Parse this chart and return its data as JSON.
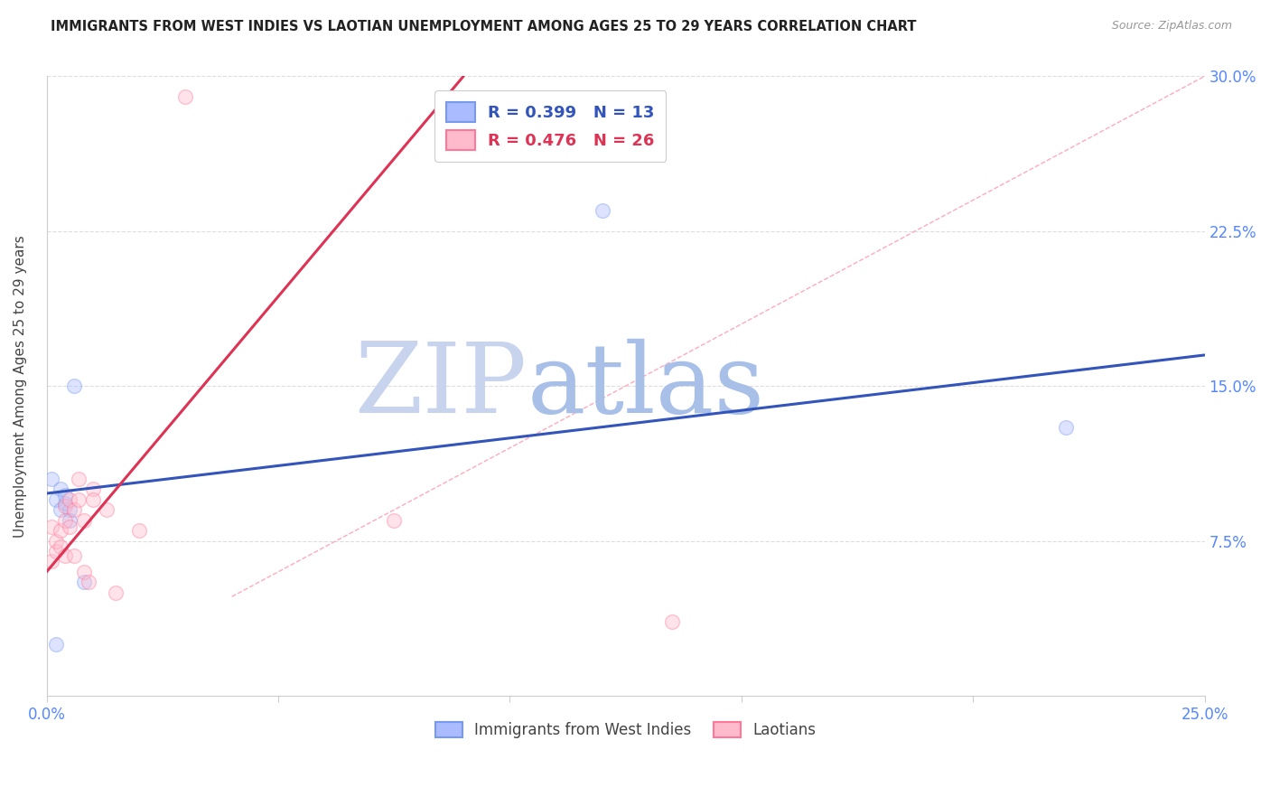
{
  "title": "IMMIGRANTS FROM WEST INDIES VS LAOTIAN UNEMPLOYMENT AMONG AGES 25 TO 29 YEARS CORRELATION CHART",
  "source": "Source: ZipAtlas.com",
  "ylabel": "Unemployment Among Ages 25 to 29 years",
  "xlim": [
    0,
    0.25
  ],
  "ylim": [
    0,
    0.3
  ],
  "xticks": [
    0.0,
    0.05,
    0.1,
    0.15,
    0.2,
    0.25
  ],
  "yticks": [
    0.0,
    0.075,
    0.15,
    0.225,
    0.3
  ],
  "xticklabels_show": [
    "0.0%",
    "",
    "",
    "",
    "",
    "25.0%"
  ],
  "yticklabels_right": [
    "",
    "7.5%",
    "15.0%",
    "22.5%",
    "30.0%"
  ],
  "legend1_label": "R = 0.399   N = 13",
  "legend2_label": "R = 0.476   N = 26",
  "legend1_color": "#7799ee",
  "legend2_color": "#ff7799",
  "legend1_fill": "#aabbff",
  "legend2_fill": "#ffbbcc",
  "watermark_zip": "ZIP",
  "watermark_atlas": "atlas",
  "watermark_color": "#d0dff5",
  "blue_color": "#3355bb",
  "pink_color": "#dd3355",
  "blue_scatter_x": [
    0.001,
    0.002,
    0.003,
    0.003,
    0.004,
    0.004,
    0.005,
    0.005,
    0.006,
    0.008,
    0.12,
    0.22,
    0.002
  ],
  "blue_scatter_y": [
    0.105,
    0.095,
    0.1,
    0.09,
    0.093,
    0.097,
    0.09,
    0.085,
    0.15,
    0.055,
    0.235,
    0.13,
    0.025
  ],
  "pink_scatter_x": [
    0.001,
    0.001,
    0.002,
    0.002,
    0.003,
    0.003,
    0.004,
    0.004,
    0.004,
    0.005,
    0.005,
    0.006,
    0.006,
    0.007,
    0.007,
    0.008,
    0.008,
    0.009,
    0.01,
    0.01,
    0.013,
    0.015,
    0.02,
    0.075,
    0.135,
    0.03
  ],
  "pink_scatter_y": [
    0.082,
    0.065,
    0.07,
    0.075,
    0.072,
    0.08,
    0.085,
    0.092,
    0.068,
    0.095,
    0.082,
    0.09,
    0.068,
    0.095,
    0.105,
    0.085,
    0.06,
    0.055,
    0.1,
    0.095,
    0.09,
    0.05,
    0.08,
    0.085,
    0.036,
    0.29
  ],
  "blue_line_x": [
    0.0,
    0.25
  ],
  "blue_line_y": [
    0.098,
    0.165
  ],
  "pink_line_x": [
    0.0,
    0.09
  ],
  "pink_line_y": [
    0.06,
    0.3
  ],
  "diag_line_x": [
    0.04,
    0.25
  ],
  "diag_line_y": [
    0.048,
    0.3
  ],
  "scatter_size": 130,
  "scatter_alpha": 0.4,
  "line_width": 2.2,
  "grid_color": "#dddddd",
  "axis_color": "#cccccc"
}
